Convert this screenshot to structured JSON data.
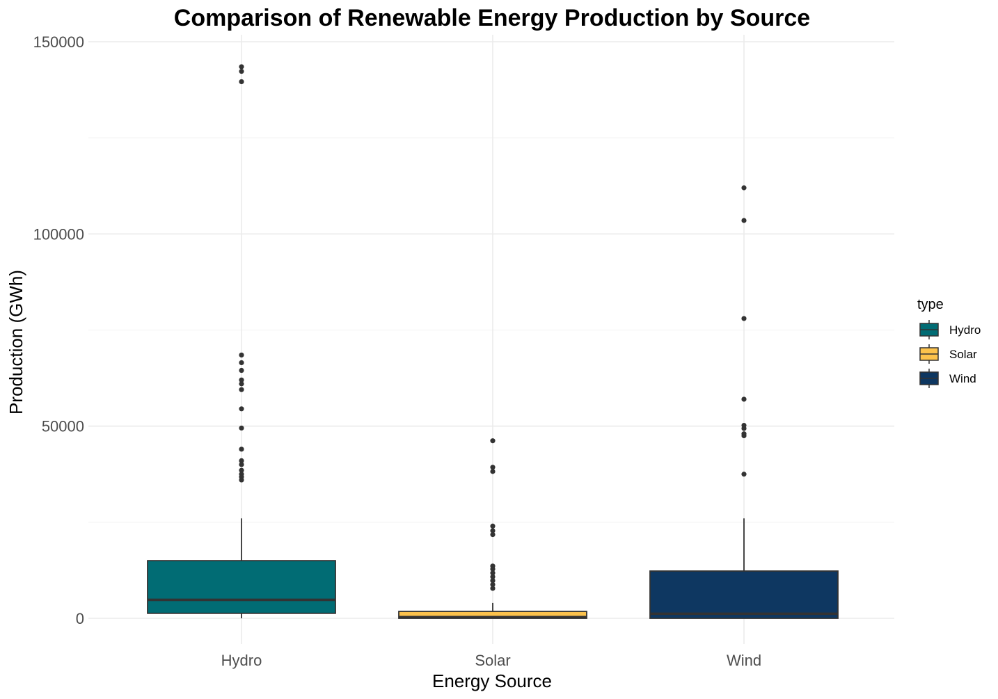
{
  "chart_data": {
    "type": "boxplot",
    "title": "Comparison of Renewable Energy Production by Source",
    "xlabel": "Energy Source",
    "ylabel": "Production (GWh)",
    "ylim": [
      -6500,
      150000
    ],
    "y_ticks": [
      0,
      50000,
      100000,
      150000
    ],
    "y_tick_labels": [
      "0",
      "50000",
      "100000",
      "150000"
    ],
    "y_minor_ticks": [
      25000,
      75000,
      125000
    ],
    "categories": [
      "Hydro",
      "Solar",
      "Wind"
    ],
    "grid": true,
    "legend": {
      "title": "type",
      "position": "right",
      "entries": [
        "Hydro",
        "Solar",
        "Wind"
      ]
    },
    "series": [
      {
        "name": "Hydro",
        "color": "#016c74",
        "whisker_low": 0,
        "q1": 1300,
        "median": 4800,
        "q3": 15000,
        "whisker_high": 26000,
        "outliers": [
          143500,
          142300,
          139600,
          68500,
          66500,
          64500,
          62000,
          61000,
          59500,
          54500,
          49500,
          44000,
          41000,
          40000,
          38500,
          37500,
          36800,
          36000
        ]
      },
      {
        "name": "Solar",
        "color": "#fcc24c",
        "whisker_low": 0,
        "q1": 0,
        "median": 300,
        "q3": 1800,
        "whisker_high": 4000,
        "outliers": [
          46200,
          39300,
          38200,
          24000,
          22800,
          21800,
          13600,
          12800,
          11800,
          10800,
          9800,
          8800,
          7800
        ]
      },
      {
        "name": "Wind",
        "color": "#0e3761",
        "whisker_low": 0,
        "q1": 0,
        "median": 1200,
        "q3": 12300,
        "whisker_high": 26000,
        "outliers": [
          112000,
          103500,
          78000,
          57000,
          50200,
          49400,
          48000,
          47500,
          37500
        ]
      }
    ]
  }
}
